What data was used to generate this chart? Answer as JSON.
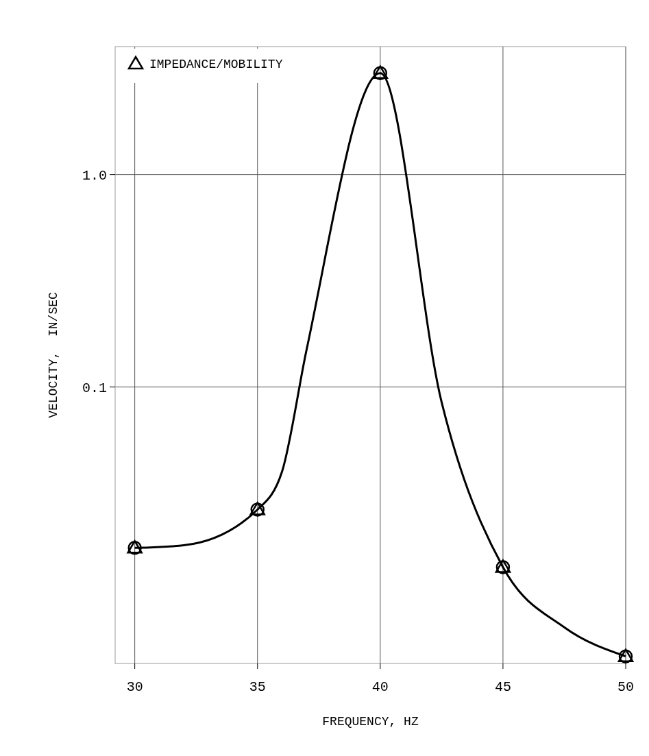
{
  "chart_data": {
    "type": "line",
    "xlabel": "FREQUENCY, HZ",
    "ylabel": "VELOCITY,  IN/SEC",
    "log": "y",
    "xlim": [
      29.2,
      50
    ],
    "ylim": [
      0.005,
      4
    ],
    "xticks": [
      30,
      35,
      40,
      45,
      50
    ],
    "yticks": [
      0.1,
      {
        "value": 1,
        "label": "1.0"
      }
    ],
    "grid": true,
    "legend": "top left",
    "series": [
      {
        "color": "#000000",
        "marker": "none",
        "x": [
          30,
          32,
          35,
          36,
          37,
          40,
          42.5,
          45,
          47.5,
          50
        ],
        "values": [
          0.0175,
          0.018,
          0.0265,
          0.04,
          0.15,
          3.0,
          0.085,
          0.0142,
          0.0074,
          0.0054
        ]
      },
      {
        "type": "scatter",
        "color": "#000000",
        "marker": "circle",
        "x": [
          30,
          35,
          40,
          45,
          50
        ],
        "values": [
          0.0175,
          0.0265,
          3.0,
          0.0142,
          0.0054
        ]
      },
      {
        "type": "scatter",
        "name": "IMPEDANCE/MOBILITY",
        "color": "#000000",
        "marker": "triangle",
        "x": [
          30,
          35,
          40,
          45,
          50
        ],
        "values": [
          0.0175,
          0.0265,
          3.0,
          0.0142,
          0.0054
        ]
      }
    ]
  }
}
